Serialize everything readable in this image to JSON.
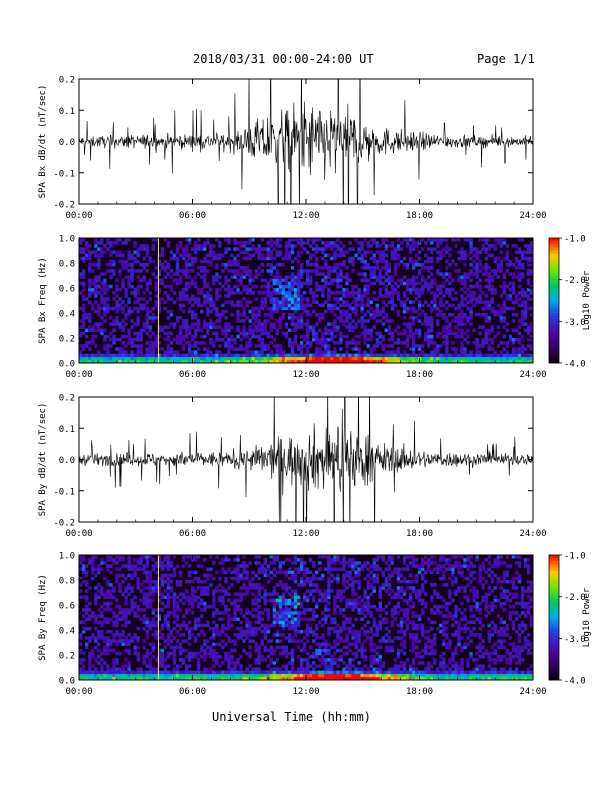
{
  "header": {
    "title": "2018/03/31  00:00-24:00 UT",
    "page": "Page 1/1"
  },
  "xaxis_label": "Universal Time (hh:mm)",
  "colorbar": {
    "label": "Log10 Power",
    "ticks": [
      "-1.0",
      "-2.0",
      "-3.0",
      "-4.0"
    ]
  },
  "chart_data": [
    {
      "type": "line",
      "ylabel": "SPA Bx dB/dt (nT/sec)",
      "x_ticks": [
        "00:00",
        "06:00",
        "12:00",
        "18:00",
        "24:00"
      ],
      "y_ticks": [
        "0.2",
        "0.1",
        "0.0",
        "-0.1",
        "-0.2"
      ],
      "xlim_hours": [
        0,
        24
      ],
      "ylim": [
        -0.2,
        0.2
      ],
      "amplitude_envelope": {
        "x_hours": [
          0,
          2,
          4,
          6,
          8,
          9,
          10,
          12,
          14,
          15,
          16,
          18,
          20,
          22,
          24
        ],
        "half_width": [
          0.03,
          0.035,
          0.04,
          0.04,
          0.05,
          0.09,
          0.16,
          0.22,
          0.2,
          0.14,
          0.08,
          0.05,
          0.035,
          0.03,
          0.03
        ]
      }
    },
    {
      "type": "heatmap",
      "ylabel": "SPA Bx Freq (Hz)",
      "x_ticks": [
        "00:00",
        "06:00",
        "12:00",
        "18:00",
        "24:00"
      ],
      "y_ticks": [
        "1.0",
        "0.8",
        "0.6",
        "0.4",
        "0.2",
        "0.0"
      ],
      "xlim_hours": [
        0,
        24
      ],
      "ylim": [
        0,
        1.0
      ],
      "zlim_log10": [
        -4.0,
        -1.0
      ],
      "vertical_line_hour": 4.2
    },
    {
      "type": "line",
      "ylabel": "SPA By dB/dt (nT/sec)",
      "x_ticks": [
        "00:00",
        "06:00",
        "12:00",
        "18:00",
        "24:00"
      ],
      "y_ticks": [
        "0.2",
        "0.1",
        "0.0",
        "-0.1",
        "-0.2"
      ],
      "xlim_hours": [
        0,
        24
      ],
      "ylim": [
        -0.2,
        0.2
      ],
      "amplitude_envelope": {
        "x_hours": [
          0,
          2,
          4,
          6,
          8,
          9,
          10,
          12,
          14,
          15,
          16,
          18,
          20,
          22,
          24
        ],
        "half_width": [
          0.03,
          0.035,
          0.04,
          0.04,
          0.045,
          0.06,
          0.1,
          0.17,
          0.2,
          0.16,
          0.09,
          0.05,
          0.04,
          0.035,
          0.03
        ]
      }
    },
    {
      "type": "heatmap",
      "ylabel": "SPA By Freq (Hz)",
      "x_ticks": [
        "00:00",
        "06:00",
        "12:00",
        "18:00",
        "24:00"
      ],
      "y_ticks": [
        "1.0",
        "0.8",
        "0.6",
        "0.4",
        "0.2",
        "0.0"
      ],
      "xlim_hours": [
        0,
        24
      ],
      "ylim": [
        0,
        1.0
      ],
      "zlim_log10": [
        -4.0,
        -1.0
      ],
      "vertical_line_hour": 4.2
    }
  ]
}
